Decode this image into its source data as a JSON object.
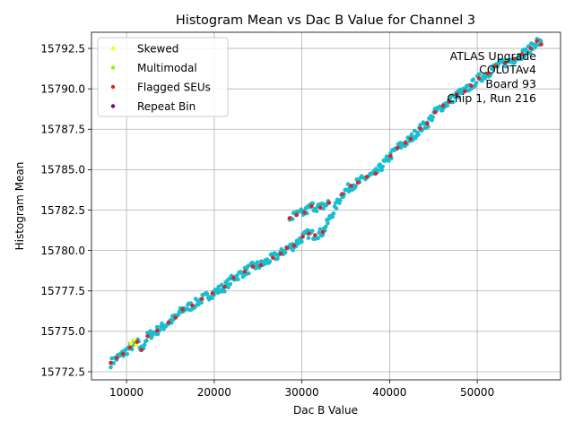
{
  "chart_data": {
    "type": "scatter",
    "title": "Histogram Mean vs Dac B Value for Channel 3",
    "xlabel": "Dac B Value",
    "ylabel": "Histogram Mean",
    "xlim": [
      6000,
      59500
    ],
    "ylim": [
      15772.0,
      15793.5
    ],
    "xticks": [
      10000,
      20000,
      30000,
      40000,
      50000
    ],
    "xtick_labels": [
      "10000",
      "20000",
      "30000",
      "40000",
      "50000"
    ],
    "yticks": [
      15772.5,
      15775.0,
      15777.5,
      15780.0,
      15782.5,
      15785.0,
      15787.5,
      15790.0,
      15792.5
    ],
    "ytick_labels": [
      "15772.5",
      "15775.0",
      "15777.5",
      "15780.0",
      "15782.5",
      "15785.0",
      "15787.5",
      "15790.0",
      "15792.5"
    ],
    "grid": true,
    "legend_position": "top-left",
    "annotation": [
      "ATLAS Upgrade",
      "COLUTAv4",
      "Board 93",
      "Chip 1, Run 216"
    ],
    "base_color": "#17becf",
    "series": [
      {
        "name": "Skewed",
        "color": "#ffff00",
        "points": [
          [
            10500,
            15774.25
          ],
          [
            10900,
            15774.45
          ],
          [
            11100,
            15774.15
          ]
        ]
      },
      {
        "name": "Multimodal",
        "color": "#7fff00",
        "points": []
      },
      {
        "name": "Flagged SEUs",
        "color": "#d62728",
        "points": [
          [
            8200,
            15773.05
          ],
          [
            8900,
            15773.35
          ],
          [
            9600,
            15773.6
          ],
          [
            10400,
            15774.0
          ],
          [
            11200,
            15774.35
          ],
          [
            11700,
            15773.85
          ],
          [
            12400,
            15774.7
          ],
          [
            13500,
            15775.05
          ],
          [
            14800,
            15775.55
          ],
          [
            15600,
            15775.85
          ],
          [
            16400,
            15776.35
          ],
          [
            17500,
            15776.6
          ],
          [
            18600,
            15777.0
          ],
          [
            19800,
            15777.35
          ],
          [
            21200,
            15777.75
          ],
          [
            22200,
            15778.3
          ],
          [
            23500,
            15778.7
          ],
          [
            24400,
            15779.0
          ],
          [
            25300,
            15779.1
          ],
          [
            26700,
            15779.55
          ],
          [
            27600,
            15779.8
          ],
          [
            28300,
            15780.15
          ],
          [
            29100,
            15780.3
          ],
          [
            30100,
            15780.85
          ],
          [
            30800,
            15781.05
          ],
          [
            31500,
            15780.95
          ],
          [
            32400,
            15781.15
          ],
          [
            28600,
            15782.0
          ],
          [
            29400,
            15782.2
          ],
          [
            30300,
            15782.35
          ],
          [
            31100,
            15782.75
          ],
          [
            32100,
            15782.65
          ],
          [
            33100,
            15782.95
          ],
          [
            34600,
            15783.5
          ],
          [
            35600,
            15784.0
          ],
          [
            36400,
            15784.2
          ],
          [
            37400,
            15784.55
          ],
          [
            38400,
            15784.75
          ],
          [
            40100,
            15785.85
          ],
          [
            40900,
            15786.35
          ],
          [
            41800,
            15786.65
          ],
          [
            42400,
            15786.9
          ],
          [
            43500,
            15787.55
          ],
          [
            44300,
            15787.85
          ],
          [
            45200,
            15788.55
          ],
          [
            46100,
            15788.95
          ],
          [
            46800,
            15789.2
          ],
          [
            47700,
            15789.65
          ],
          [
            48600,
            15789.85
          ],
          [
            49300,
            15790.2
          ],
          [
            50200,
            15790.65
          ],
          [
            51200,
            15790.95
          ],
          [
            52100,
            15791.4
          ],
          [
            53200,
            15791.6
          ],
          [
            54200,
            15791.85
          ],
          [
            55100,
            15792.15
          ],
          [
            56100,
            15792.5
          ],
          [
            56800,
            15792.95
          ],
          [
            57300,
            15792.75
          ]
        ]
      },
      {
        "name": "Repeat Bin",
        "color": "#800080",
        "points": []
      }
    ]
  }
}
